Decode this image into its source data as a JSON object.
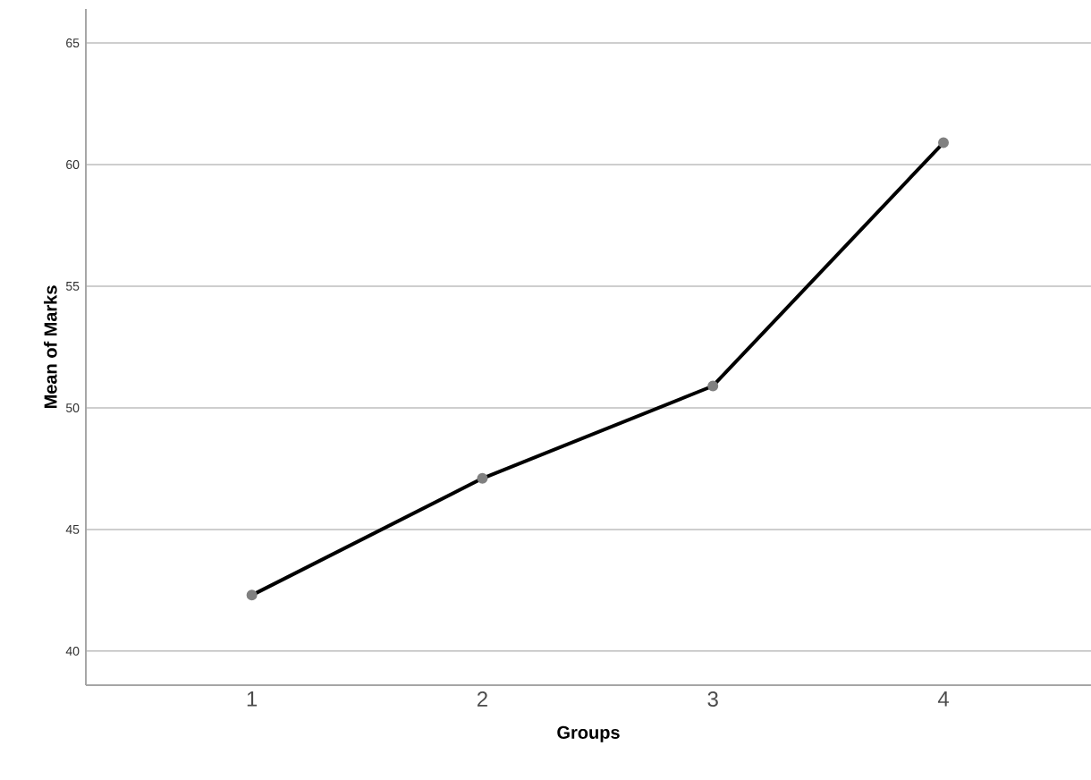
{
  "chart_data": {
    "type": "line",
    "xlabel": "Groups",
    "ylabel": "Mean of Marks",
    "categories": [
      "1",
      "2",
      "3",
      "4"
    ],
    "series": [
      {
        "color": "#000000",
        "values": [
          42.3,
          47.1,
          50.9,
          60.9
        ]
      }
    ],
    "ylim": [
      38.6,
      66.4
    ],
    "yticks": [
      40,
      45,
      50,
      55,
      60,
      65
    ],
    "grid": "y",
    "marker": "circle",
    "line_style": "solid"
  }
}
